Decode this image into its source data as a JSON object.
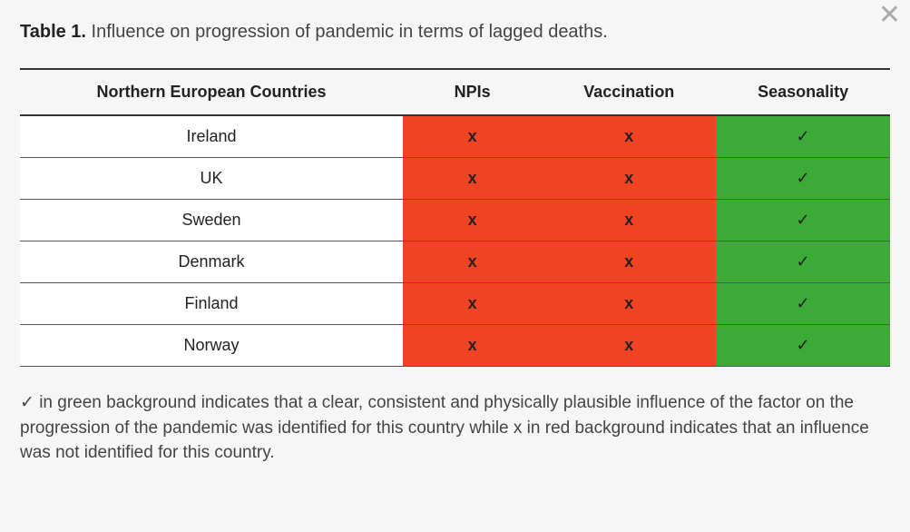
{
  "close_icon": "✕",
  "caption_bold": "Table 1.",
  "caption_rest": " Influence on progression of pandemic in terms of lagged deaths.",
  "colors": {
    "red_bg": "#f04323",
    "green_bg": "#3caa36",
    "header_border": "#333333",
    "row_border": "#555555",
    "page_bg": "#f6f6f6"
  },
  "symbols": {
    "yes": "✓",
    "no": "x"
  },
  "columns": [
    "Northern European Countries",
    "NPIs",
    "Vaccination",
    "Seasonality"
  ],
  "column_widths_pct": [
    44,
    16,
    20,
    20
  ],
  "rows": [
    {
      "country": "Ireland",
      "cells": [
        "no",
        "no",
        "yes"
      ]
    },
    {
      "country": "UK",
      "cells": [
        "no",
        "no",
        "yes"
      ]
    },
    {
      "country": "Sweden",
      "cells": [
        "no",
        "no",
        "yes"
      ]
    },
    {
      "country": "Denmark",
      "cells": [
        "no",
        "no",
        "yes"
      ]
    },
    {
      "country": "Finland",
      "cells": [
        "no",
        "no",
        "yes"
      ]
    },
    {
      "country": "Norway",
      "cells": [
        "no",
        "no",
        "yes"
      ]
    }
  ],
  "footnote": "✓ in green background indicates that a clear, consistent and physically plausible influence of the factor on the progression of the pandemic was identified for this country while x in red background indicates that an influence was not identified for this country."
}
